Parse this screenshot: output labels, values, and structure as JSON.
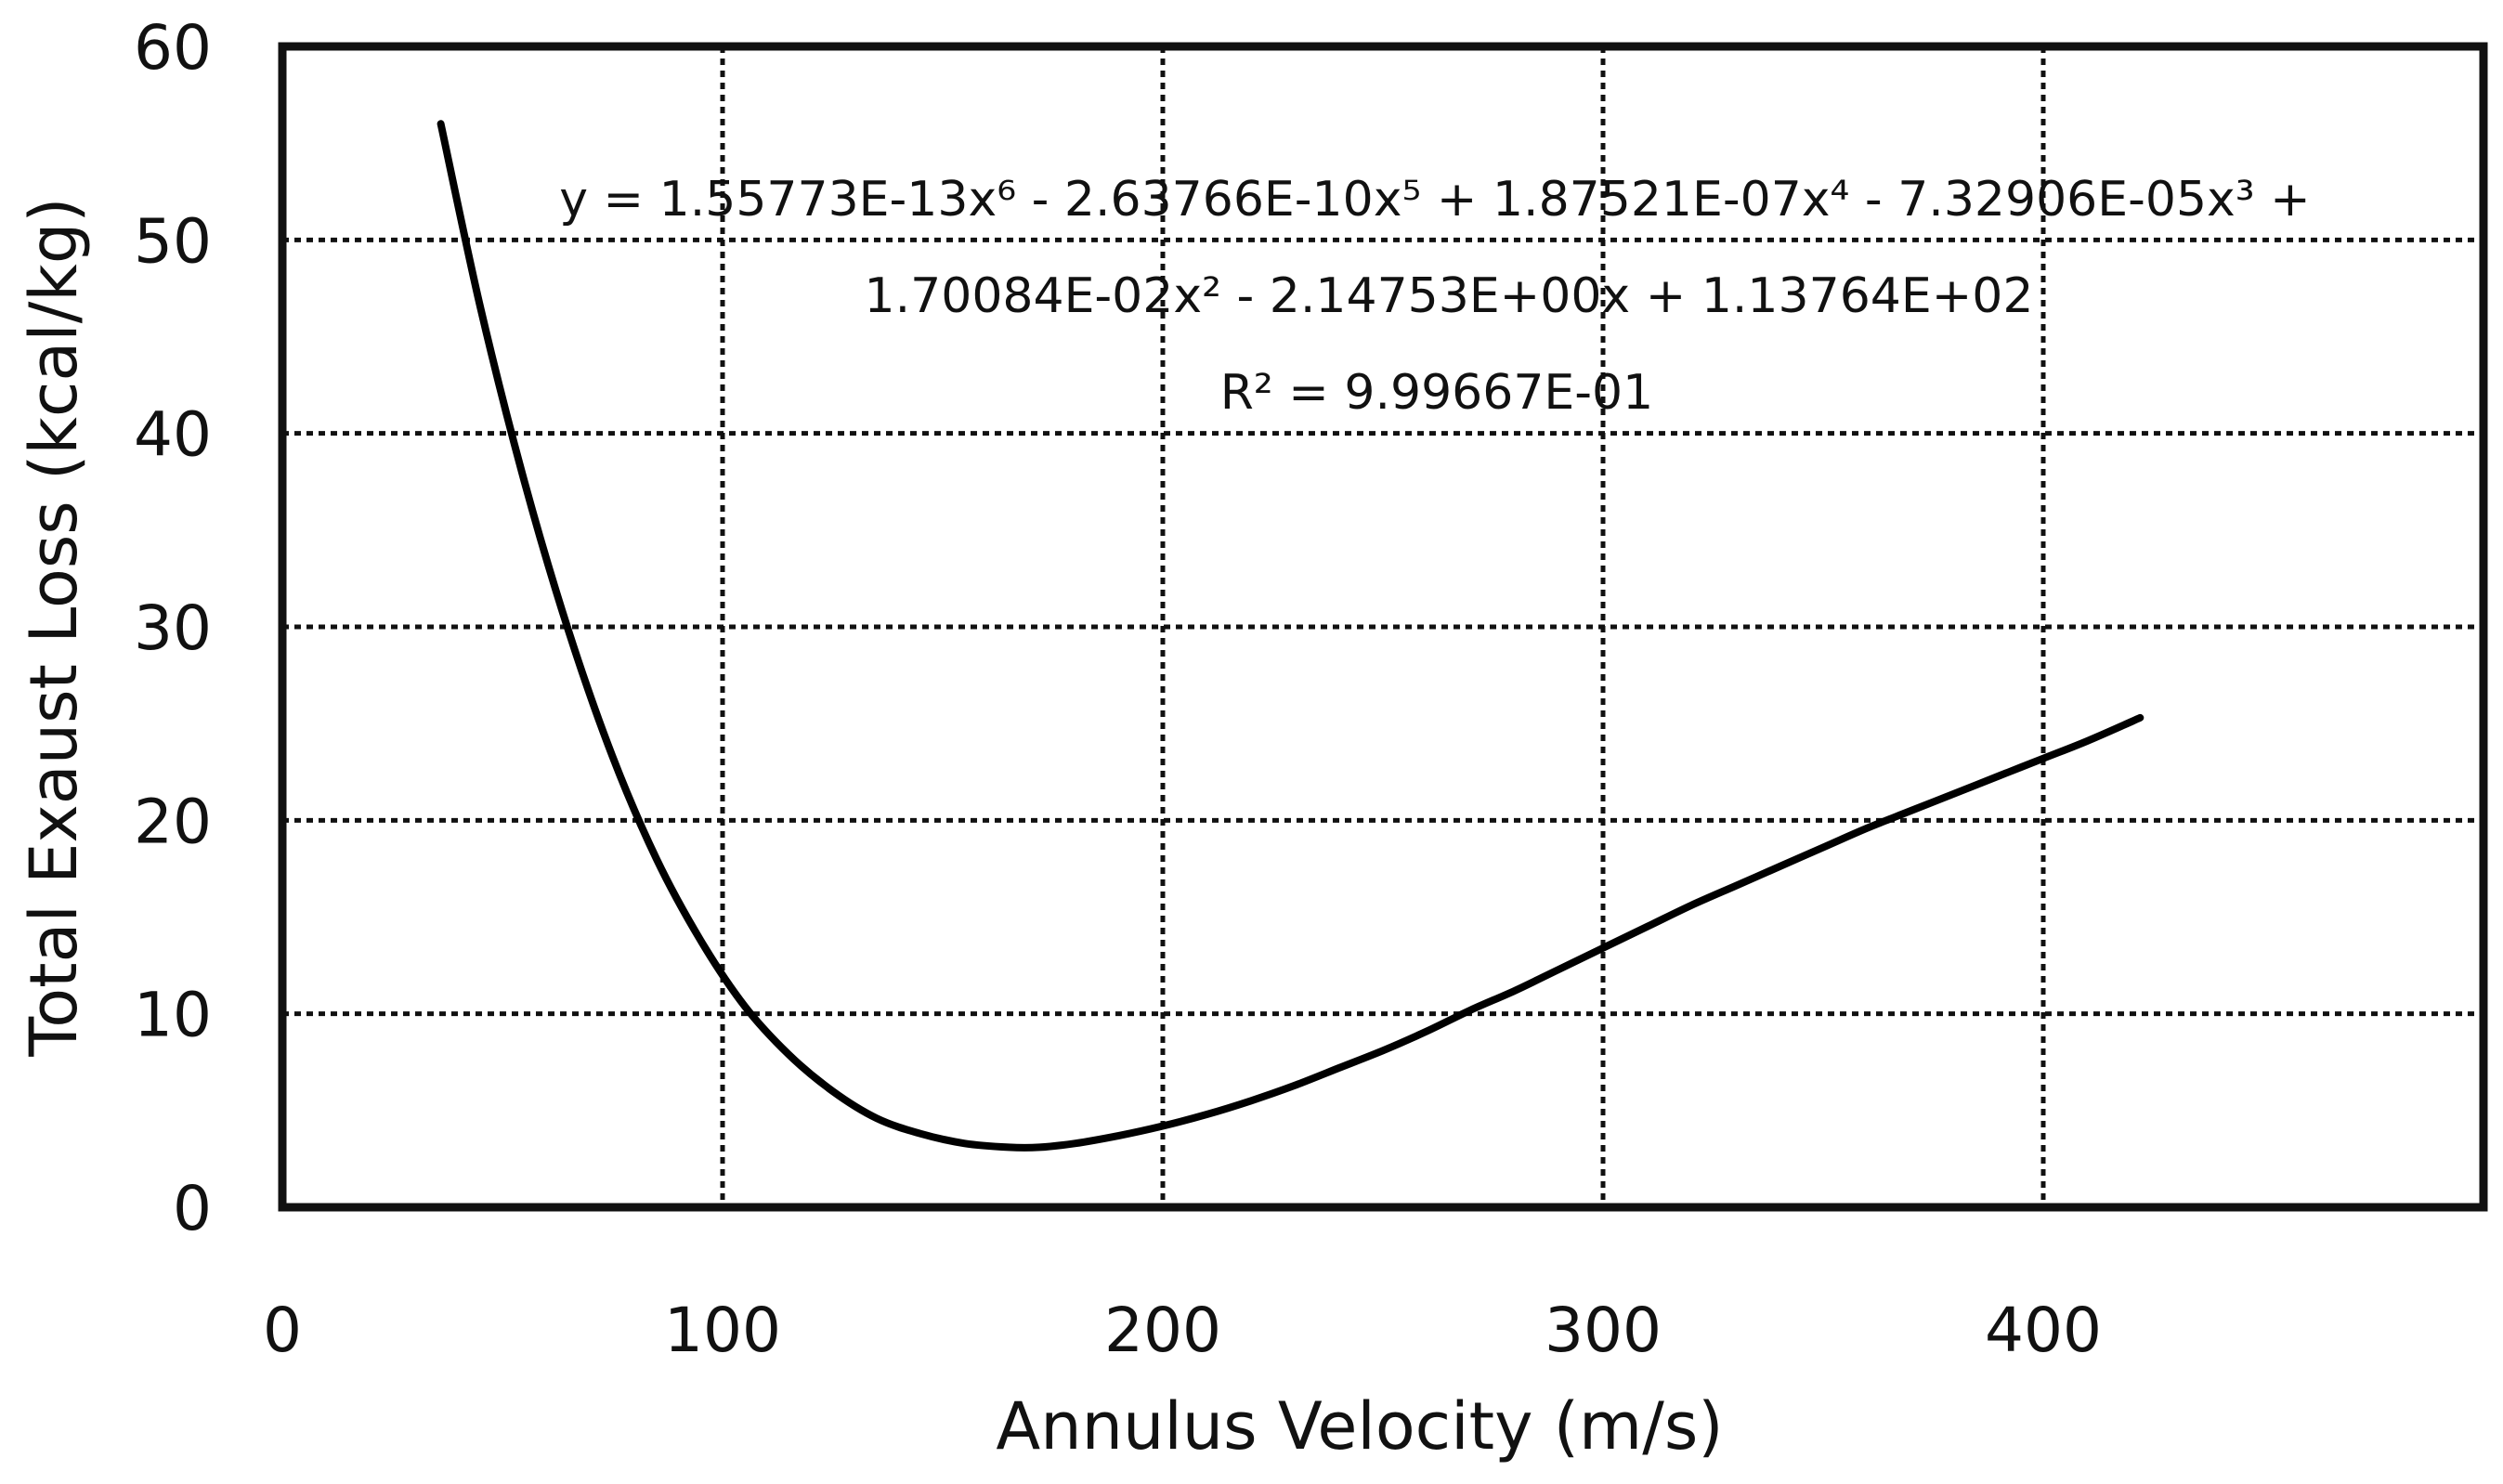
{
  "chart_data": {
    "type": "line",
    "title": "",
    "xlabel": "Annulus Velocity (m/s)",
    "ylabel": "Total Exaust Loss (kcal/kg)",
    "xlim": [
      0,
      500
    ],
    "ylim": [
      0,
      60
    ],
    "x_ticks": [
      "0",
      "100",
      "200",
      "300",
      "400"
    ],
    "y_ticks": [
      "0",
      "10",
      "20",
      "30",
      "40",
      "50",
      "60"
    ],
    "grid": true,
    "series": [
      {
        "name": "Total Exaust Loss",
        "x": [
          36,
          45,
          55,
          65,
          75,
          85,
          95,
          105,
          115,
          125,
          135,
          145,
          155,
          165,
          172,
          180,
          190,
          200,
          210,
          220,
          230,
          240,
          250,
          260,
          270,
          280,
          290,
          300,
          310,
          320,
          330,
          340,
          350,
          360,
          370,
          380,
          390,
          400,
          410,
          422
        ],
        "values": [
          56.0,
          46.5,
          37.5,
          29.8,
          23.3,
          18.0,
          13.8,
          10.4,
          7.9,
          6.0,
          4.6,
          3.8,
          3.3,
          3.1,
          3.1,
          3.3,
          3.7,
          4.2,
          4.8,
          5.5,
          6.3,
          7.2,
          8.1,
          9.1,
          10.2,
          11.2,
          12.3,
          13.4,
          14.5,
          15.6,
          16.6,
          17.6,
          18.6,
          19.6,
          20.5,
          21.4,
          22.3,
          23.2,
          24.1,
          25.3
        ]
      }
    ],
    "annotations": {
      "equation_line1": "y = 1.55773E-13x⁶ - 2.63766E-10x⁵ + 1.87521E-07x⁴ - 7.32906E-05x³ +",
      "equation_line2": "1.70084E-02x² - 2.14753E+00x + 1.13764E+02",
      "r_squared": "R² = 9.99667E-01"
    }
  }
}
